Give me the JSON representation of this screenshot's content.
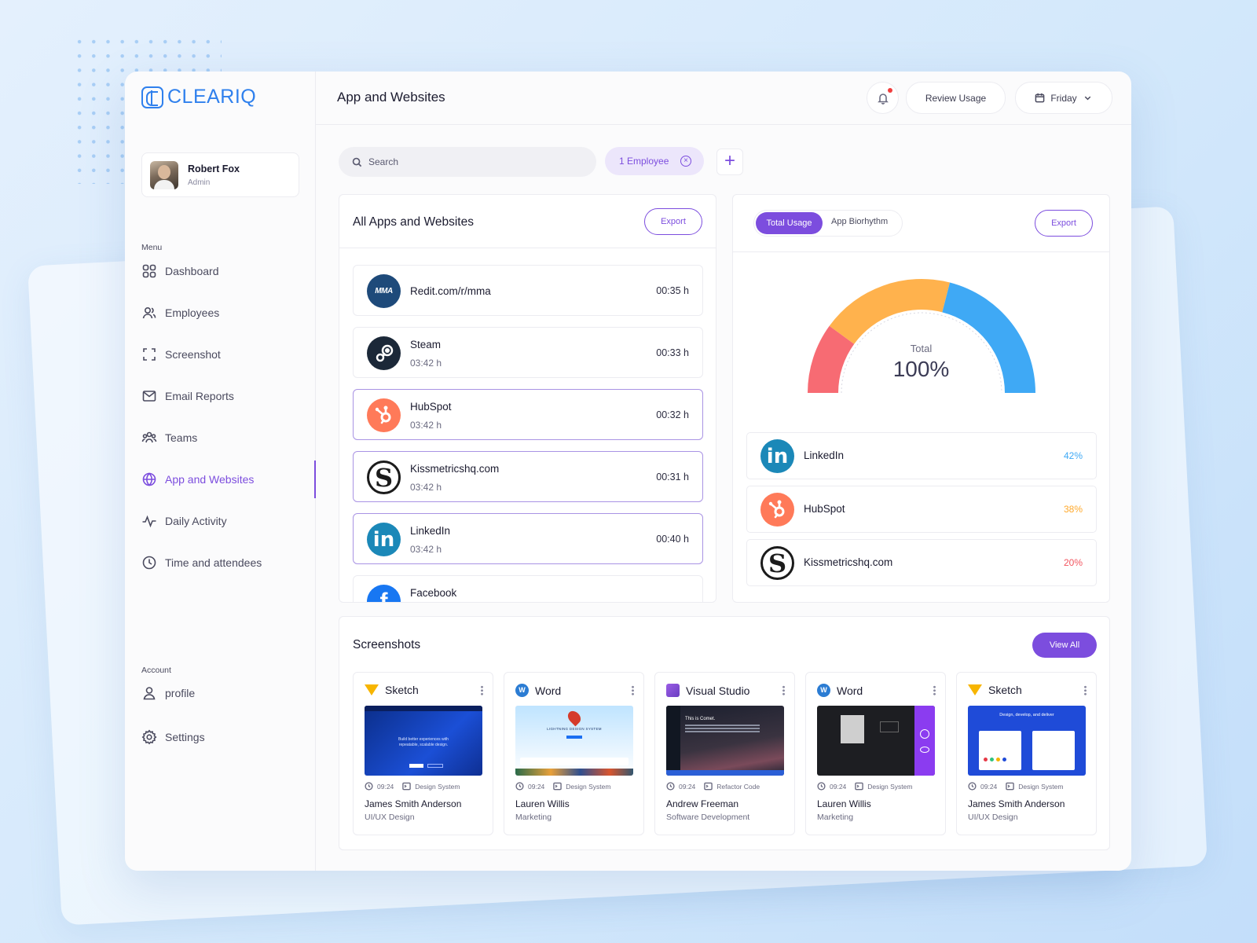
{
  "brand": {
    "name": "CLEARIQ",
    "accent": "#7c4dde",
    "logo_color": "#2f80ed"
  },
  "user": {
    "name": "Robert Fox",
    "role": "Admin"
  },
  "sidebar": {
    "menu_label": "Menu",
    "items": [
      {
        "label": "Dashboard",
        "icon": "grid-icon"
      },
      {
        "label": "Employees",
        "icon": "users-icon"
      },
      {
        "label": "Screenshot",
        "icon": "screenshot-icon"
      },
      {
        "label": "Email Reports",
        "icon": "mail-icon"
      },
      {
        "label": "Teams",
        "icon": "team-icon"
      },
      {
        "label": "App and Websites",
        "icon": "globe-icon",
        "active": true
      },
      {
        "label": "Daily Activity",
        "icon": "activity-icon"
      },
      {
        "label": "Time and attendees",
        "icon": "clock-icon"
      }
    ],
    "account_label": "Account",
    "account_items": [
      {
        "label": "profile",
        "icon": "user-icon"
      },
      {
        "label": "Settings",
        "icon": "gear-icon"
      }
    ]
  },
  "header": {
    "title": "App and Websites",
    "review_label": "Review Usage",
    "day_label": "Friday"
  },
  "filters": {
    "search_placeholder": "Search",
    "chip_label": "1 Employee"
  },
  "apps_panel": {
    "title": "All Apps and Websites",
    "export_label": "Export",
    "rows": [
      {
        "name": "Redit.com/r/mma",
        "sub": "",
        "time": "00:35 h",
        "icon": "mma-icon"
      },
      {
        "name": "Steam",
        "sub": "03:42 h",
        "time": "00:33 h",
        "icon": "steam-icon"
      },
      {
        "name": "HubSpot",
        "sub": "03:42 h",
        "time": "00:32 h",
        "icon": "hubspot-icon"
      },
      {
        "name": "Kissmetricshq.com",
        "sub": "03:42 h",
        "time": "00:31 h",
        "icon": "kissmetrics-icon"
      },
      {
        "name": "LinkedIn",
        "sub": "03:42 h",
        "time": "00:40 h",
        "icon": "linkedin-icon"
      },
      {
        "name": "Facebook",
        "sub": "",
        "time": "",
        "icon": "facebook-icon"
      }
    ]
  },
  "usage_panel": {
    "tab_active": "Total Usage",
    "tab_other": "App Biorhythm",
    "export_label": "Export",
    "gauge_label": "Total",
    "gauge_value": "100%",
    "segments": [
      {
        "name": "LinkedIn",
        "value": 42,
        "pct": "42%",
        "color": "#3fa9f5",
        "icon": "linkedin-icon"
      },
      {
        "name": "HubSpot",
        "value": 38,
        "pct": "38%",
        "color": "#ffb24d",
        "icon": "hubspot-icon"
      },
      {
        "name": "Kissmetricshq.com",
        "value": 20,
        "pct": "20%",
        "color": "#f76b73",
        "icon": "kissmetrics-icon"
      }
    ]
  },
  "screenshots": {
    "title": "Screenshots",
    "view_all_label": "View All",
    "cards": [
      {
        "app": "Sketch",
        "time": "09:24",
        "tag": "Design System",
        "person": "James Smith Anderson",
        "role": "UI/UX Design",
        "hero": "Build better experiences with repeatable, scalable design."
      },
      {
        "app": "Word",
        "time": "09:24",
        "tag": "Design System",
        "person": "Lauren Willis",
        "role": "Marketing",
        "hero": "LIGHTNING DESIGN SYSTEM"
      },
      {
        "app": "Visual Studio",
        "time": "09:24",
        "tag": "Refactor Code",
        "person": "Andrew Freeman",
        "role": "Software Development",
        "hero": "This is Comet."
      },
      {
        "app": "Word",
        "time": "09:24",
        "tag": "Design System",
        "person": "Lauren Willis",
        "role": "Marketing",
        "hero": ""
      },
      {
        "app": "Sketch",
        "time": "09:24",
        "tag": "Design System",
        "person": "James Smith Anderson",
        "role": "UI/UX Design",
        "hero": "Design, develop, and deliver"
      }
    ]
  }
}
